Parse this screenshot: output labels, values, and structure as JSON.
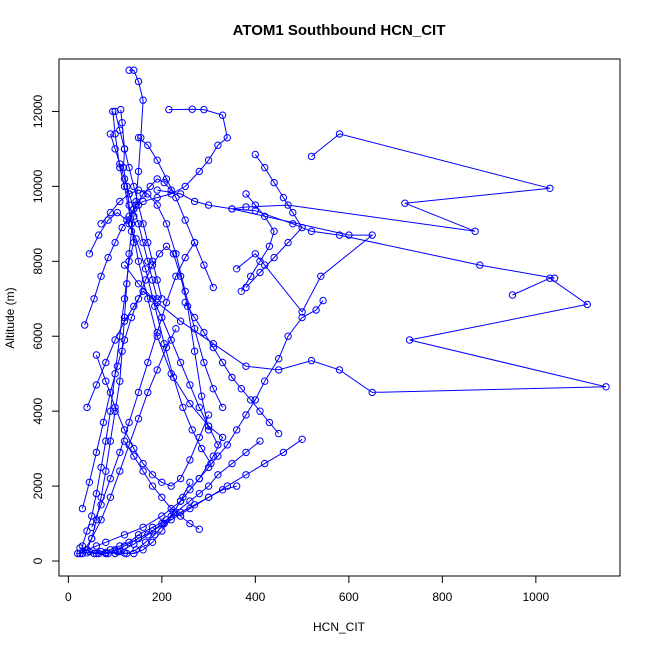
{
  "chart_data": {
    "type": "line",
    "title": "ATOM1 Southbound HCN_CIT",
    "xlabel": "HCN_CIT",
    "ylabel": "Altitude (m)",
    "xlim": [
      -20,
      1180
    ],
    "ylim": [
      -400,
      13400
    ],
    "xticks": [
      0,
      200,
      400,
      600,
      800,
      1000
    ],
    "yticks": [
      0,
      2000,
      4000,
      6000,
      8000,
      10000,
      12000
    ],
    "grid": false,
    "legend": "none",
    "color": "#0000ff",
    "series": [
      {
        "x": [
          25,
          40,
          60,
          80,
          120,
          160,
          200,
          240,
          280,
          310,
          330,
          300,
          260,
          220,
          190,
          170,
          150,
          135,
          120,
          110,
          100,
          95
        ],
        "y": [
          200,
          300,
          400,
          500,
          700,
          900,
          1200,
          1600,
          2200,
          2800,
          3300,
          3600,
          4200,
          5000,
          6000,
          7000,
          8000,
          9000,
          10000,
          10500,
          11400,
          12000
        ]
      },
      {
        "x": [
          112,
          115,
          120,
          118,
          125,
          130,
          135,
          140,
          130,
          120,
          110,
          100,
          90,
          80,
          70,
          60,
          50,
          40,
          30,
          25
        ],
        "y": [
          12050,
          11700,
          11000,
          10500,
          10000,
          9500,
          9000,
          8500,
          8000,
          7000,
          6000,
          5000,
          4000,
          3200,
          2500,
          1800,
          1200,
          800,
          400,
          200
        ]
      },
      {
        "x": [
          130,
          140,
          150,
          160,
          155,
          150,
          145,
          140,
          135,
          130,
          125,
          120,
          115,
          110,
          100,
          90,
          80,
          70,
          60,
          50,
          40
        ],
        "y": [
          13100,
          13100,
          12800,
          12300,
          11300,
          10400,
          9600,
          9200,
          8800,
          8200,
          7400,
          6500,
          5600,
          4800,
          4000,
          3200,
          2400,
          1700,
          1100,
          600,
          300
        ]
      },
      {
        "x": [
          215,
          265,
          290,
          330,
          340,
          320,
          300,
          280,
          250,
          220,
          190,
          160,
          140,
          130
        ],
        "y": [
          12050,
          12060,
          12050,
          11900,
          11300,
          11100,
          10700,
          10400,
          10000,
          9800,
          9700,
          9600,
          9400,
          9000
        ]
      },
      {
        "x": [
          520,
          580,
          1030,
          720,
          870,
          470,
          380,
          350,
          600,
          650,
          540,
          500,
          420,
          400,
          360
        ],
        "y": [
          10800,
          11400,
          9950,
          9550,
          8800,
          9500,
          9450,
          9400,
          8700,
          8700,
          7600,
          6650,
          7900,
          8200,
          7800
        ]
      },
      {
        "x": [
          1040,
          880,
          580,
          520,
          480,
          400,
          350,
          300,
          270,
          240,
          190
        ],
        "y": [
          7550,
          7900,
          8700,
          8800,
          9000,
          9350,
          9400,
          9500,
          9600,
          9800,
          9900
        ]
      },
      {
        "x": [
          950,
          1030,
          1110,
          730,
          1150,
          650,
          580,
          520,
          450,
          380,
          310,
          240,
          190,
          150,
          120
        ],
        "y": [
          7100,
          7550,
          6850,
          5900,
          4650,
          4500,
          5100,
          5350,
          5100,
          5200,
          5800,
          6400,
          6900,
          7400,
          7900
        ]
      },
      {
        "x": [
          545,
          530,
          500,
          470,
          450,
          420,
          400,
          380,
          360,
          340,
          320,
          300,
          280,
          260
        ],
        "y": [
          6950,
          6700,
          6500,
          6000,
          5400,
          4800,
          4300,
          3900,
          3500,
          3100,
          2800,
          2500,
          2200,
          1900
        ]
      },
      {
        "x": [
          500,
          460,
          420,
          380,
          340,
          300,
          260,
          220,
          180,
          150,
          120,
          100,
          80
        ],
        "y": [
          3250,
          2900,
          2600,
          2300,
          2000,
          1700,
          1400,
          1100,
          800,
          600,
          400,
          300,
          200
        ]
      },
      {
        "x": [
          360,
          330,
          300,
          270,
          240,
          210,
          180,
          150,
          130,
          110,
          90,
          70,
          55
        ],
        "y": [
          2000,
          1900,
          1700,
          1500,
          1300,
          1100,
          900,
          700,
          500,
          400,
          300,
          250,
          200
        ]
      },
      {
        "x": [
          410,
          380,
          350,
          320,
          300,
          280,
          260,
          230,
          200,
          170,
          140,
          110
        ],
        "y": [
          3200,
          2900,
          2600,
          2300,
          2000,
          1800,
          1600,
          1300,
          1000,
          700,
          450,
          250
        ]
      },
      {
        "x": [
          30,
          45,
          60,
          75,
          90,
          105,
          120,
          135,
          150,
          165,
          180,
          195,
          210,
          225,
          240,
          255,
          270,
          285,
          300
        ],
        "y": [
          1400,
          2100,
          2900,
          3700,
          4500,
          5200,
          5900,
          6500,
          7000,
          7500,
          7900,
          8200,
          8400,
          8200,
          7600,
          6800,
          5600,
          4400,
          3500
        ]
      },
      {
        "x": [
          35,
          55,
          70,
          85,
          100,
          115,
          130,
          145,
          160,
          175,
          190,
          205,
          220
        ],
        "y": [
          6300,
          7000,
          7600,
          8100,
          8500,
          8900,
          9200,
          9500,
          9800,
          10000,
          10200,
          10100,
          9900
        ]
      },
      {
        "x": [
          45,
          65,
          85,
          105,
          125,
          145,
          165,
          185,
          205,
          225,
          245,
          265,
          285,
          305
        ],
        "y": [
          8200,
          8700,
          9100,
          9300,
          9100,
          8600,
          7800,
          6800,
          5800,
          4900,
          4100,
          3500,
          3000,
          2600
        ]
      },
      {
        "x": [
          40,
          60,
          80,
          100,
          120,
          140,
          160,
          180,
          200,
          220,
          240,
          260,
          280,
          300,
          320
        ],
        "y": [
          4100,
          4700,
          5300,
          5900,
          6400,
          6800,
          7200,
          7000,
          6500,
          5900,
          5300,
          4700,
          4100,
          3600,
          3100
        ]
      },
      {
        "x": [
          60,
          80,
          100,
          120,
          140,
          160,
          180,
          200,
          220,
          240,
          260,
          280,
          300
        ],
        "y": [
          5500,
          4800,
          4100,
          3500,
          3000,
          2600,
          2300,
          2100,
          2000,
          2200,
          2700,
          3300,
          3900
        ]
      },
      {
        "x": [
          70,
          90,
          110,
          130,
          150,
          170,
          190,
          210,
          230,
          250,
          270,
          290,
          310,
          330
        ],
        "y": [
          9000,
          9300,
          9600,
          9800,
          9900,
          9800,
          9500,
          9000,
          8200,
          7200,
          6200,
          5300,
          4600,
          4100
        ]
      },
      {
        "x": [
          30,
          50,
          70,
          90,
          110,
          130,
          150,
          170,
          190,
          210,
          230
        ],
        "y": [
          200,
          600,
          1100,
          1700,
          2400,
          3100,
          3800,
          4500,
          5100,
          5700,
          6200
        ]
      },
      {
        "x": [
          50,
          70,
          90,
          110,
          130,
          150,
          170,
          190,
          210,
          230,
          250,
          270
        ],
        "y": [
          900,
          1500,
          2200,
          2900,
          3700,
          4500,
          5300,
          6100,
          6900,
          7600,
          8100,
          8500
        ]
      },
      {
        "x": [
          20,
          40,
          60,
          80,
          100,
          120,
          140,
          160,
          180,
          200,
          220,
          240,
          260
        ],
        "y": [
          200,
          220,
          200,
          230,
          200,
          210,
          200,
          300,
          500,
          800,
          1200,
          1600,
          2100
        ]
      },
      {
        "x": [
          25,
          45,
          65,
          85,
          105,
          125,
          145,
          165,
          185,
          205,
          225,
          245
        ],
        "y": [
          350,
          250,
          200,
          200,
          250,
          200,
          300,
          500,
          700,
          1000,
          1300,
          1700
        ]
      },
      {
        "x": [
          90,
          100,
          110,
          120,
          130,
          140,
          150,
          160,
          170,
          180,
          190
        ],
        "y": [
          11400,
          11000,
          10600,
          10200,
          9800,
          9400,
          9000,
          8500,
          8000,
          7500,
          7000
        ]
      },
      {
        "x": [
          100,
          110,
          120,
          130,
          140,
          150,
          160,
          170,
          180,
          190,
          200
        ],
        "y": [
          12000,
          11500,
          11000,
          10500,
          10000,
          9500,
          9000,
          8500,
          8000,
          7500,
          7000
        ]
      },
      {
        "x": [
          150,
          170,
          190,
          210,
          230,
          250,
          270,
          290,
          310
        ],
        "y": [
          11300,
          11100,
          10700,
          10200,
          9700,
          9100,
          8500,
          7900,
          7300
        ]
      },
      {
        "x": [
          400,
          420,
          440,
          460,
          480,
          500,
          470,
          440,
          410,
          380
        ],
        "y": [
          10850,
          10500,
          10100,
          9700,
          9300,
          8900,
          8500,
          8100,
          7700,
          7300
        ]
      },
      {
        "x": [
          380,
          400,
          420,
          440,
          430,
          410,
          390,
          370
        ],
        "y": [
          9800,
          9500,
          9200,
          8800,
          8400,
          8000,
          7600,
          7200
        ]
      },
      {
        "x": [
          250,
          270,
          290,
          310,
          330,
          350,
          370,
          390,
          410,
          430,
          450
        ],
        "y": [
          6900,
          6500,
          6100,
          5700,
          5300,
          4900,
          4600,
          4300,
          4000,
          3700,
          3400
        ]
      },
      {
        "x": [
          120,
          140,
          160,
          180,
          200,
          220,
          240,
          260,
          280
        ],
        "y": [
          3200,
          2800,
          2400,
          2000,
          1700,
          1400,
          1200,
          1000,
          850
        ]
      }
    ]
  }
}
